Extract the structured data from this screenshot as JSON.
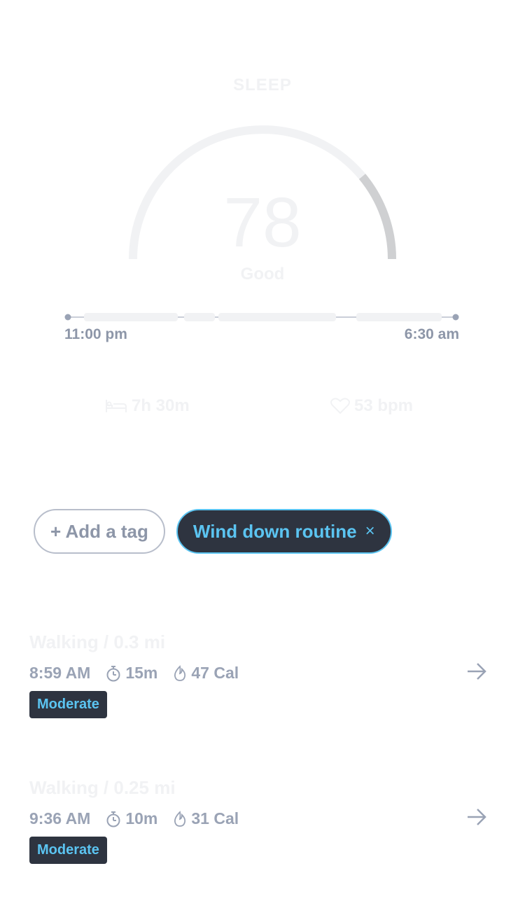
{
  "sleep": {
    "section_label": "SLEEP",
    "score": "78",
    "score_fraction": 0.78,
    "score_label": "Good",
    "start_time": "11:00 pm",
    "end_time": "6:30 am",
    "duration": "7h 30m",
    "heart_rate": "53 bpm",
    "icons": {
      "duration": "bed-icon",
      "heart_rate": "heart-icon"
    }
  },
  "tags": {
    "add_label": "+ Add a tag",
    "active_label": "Wind down routine",
    "active_close": "×"
  },
  "activities": [
    {
      "title": "Walking / 0.3 mi",
      "time": "8:59 AM",
      "duration": "15m",
      "calories": "47 Cal",
      "intensity": "Moderate"
    },
    {
      "title": "Walking / 0.25 mi",
      "time": "9:36 AM",
      "duration": "10m",
      "calories": "31 Cal",
      "intensity": "Moderate"
    }
  ],
  "colors": {
    "accent": "#5bc4f1",
    "dark_chip": "#2e3440",
    "muted_text": "#9aa3b5",
    "faint": "#f1f2f4",
    "gauge_fill": "#cfd0d2"
  }
}
